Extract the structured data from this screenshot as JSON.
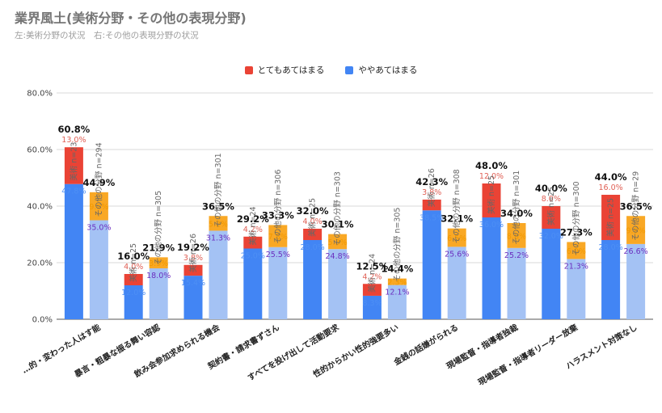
{
  "title": "業界風土(美術分野・その他の表現分野)",
  "subtitle": "左:美術分野の状況　右:その他の表現分野の状況",
  "colors": {
    "very": "#ea4335",
    "some": "#4285f4",
    "other_very": "#f9a825",
    "other_some": "#a4c2f4",
    "sub_very_label": "#e06055",
    "other_very_label": "#f29900",
    "some_label": "#4d8ff5",
    "other_some_label": "#6b2fbf"
  },
  "chart_data": {
    "type": "bar",
    "stacked": true,
    "legend": [
      "とてもあてはまる",
      "ややあてはまる"
    ],
    "legend_position": "top",
    "ylim": [
      0,
      80
    ],
    "yticks": [
      "0.0%",
      "20.0%",
      "40.0%",
      "60.0%",
      "80.0%"
    ],
    "grid": true,
    "categories": [
      "…的・変わった人はす能",
      "暴言・粗暴な振る舞い容認",
      "飲み会参加求められる機会",
      "契約書・請求書ずさん",
      "すべてを投げ出して活動要求",
      "性的からかい性的強要多い",
      "金銭の話嫌がられる",
      "現場監督・指導者独裁",
      "現場監督・指導者リーダー放棄",
      "ハラスメント対策なし"
    ],
    "bars": [
      {
        "category": 0,
        "group": "美術",
        "n_label": "美術 n=23",
        "very": 13.0,
        "some": 47.8,
        "total": "60.8%",
        "very_label": "13.0%",
        "some_label": "47.8%"
      },
      {
        "category": 0,
        "group": "その他の分野",
        "n_label": "その他の分野 n=294",
        "very": 9.9,
        "some": 35.0,
        "total": "44.9%",
        "very_label": "9.9%",
        "some_label": "35.0%"
      },
      {
        "category": 1,
        "group": "美術",
        "n_label": "美術 n=25",
        "very": 4.0,
        "some": 12.0,
        "total": "16.0%",
        "very_label": "4.0%",
        "some_label": "12.0%"
      },
      {
        "category": 1,
        "group": "その他の分野",
        "n_label": "その他の分野 n=305",
        "very": 3.9,
        "some": 18.0,
        "total": "21.9%",
        "very_label": "3.9%",
        "some_label": "18.0%"
      },
      {
        "category": 2,
        "group": "美術",
        "n_label": "美術 n=26",
        "very": 3.8,
        "some": 15.4,
        "total": "19.2%",
        "very_label": "3.8%",
        "some_label": "15.4%"
      },
      {
        "category": 2,
        "group": "その他の分野",
        "n_label": "その他の分野 n=301",
        "very": 5.2,
        "some": 31.3,
        "total": "36.5%",
        "very_label": "5.2%",
        "some_label": "31.3%"
      },
      {
        "category": 3,
        "group": "美術",
        "n_label": "美術 n=24",
        "very": 4.2,
        "some": 25.0,
        "total": "29.2%",
        "very_label": "4.2%",
        "some_label": "25.0%"
      },
      {
        "category": 3,
        "group": "その他の分野",
        "n_label": "その他の分野 n=306",
        "very": 7.8,
        "some": 25.5,
        "total": "33.3%",
        "very_label": "7.8%",
        "some_label": "25.5%"
      },
      {
        "category": 4,
        "group": "美術",
        "n_label": "美術 n=25",
        "very": 4.0,
        "some": 28.0,
        "total": "32.0%",
        "very_label": "4.0%",
        "some_label": "28.0%"
      },
      {
        "category": 4,
        "group": "その他の分野",
        "n_label": "その他の分野 n=303",
        "very": 5.3,
        "some": 24.8,
        "total": "30.1%",
        "very_label": "5.3%",
        "some_label": "24.8%"
      },
      {
        "category": 5,
        "group": "美術",
        "n_label": "美術 n=24",
        "very": 4.2,
        "some": 8.3,
        "total": "12.5%",
        "very_label": "4.2%",
        "some_label": "8.3%"
      },
      {
        "category": 5,
        "group": "その他の分野",
        "n_label": "その他の分野 n=305",
        "very": 2.3,
        "some": 12.1,
        "total": "14.4%",
        "very_label": "2.3%",
        "some_label": "12.1%"
      },
      {
        "category": 6,
        "group": "美術",
        "n_label": "美術 n=26",
        "very": 3.8,
        "some": 38.5,
        "total": "42.3%",
        "very_label": "3.8%",
        "some_label": "38.5%"
      },
      {
        "category": 6,
        "group": "その他の分野",
        "n_label": "その他の分野 n=308",
        "very": 6.5,
        "some": 25.6,
        "total": "32.1%",
        "very_label": "6.5%",
        "some_label": "25.6%"
      },
      {
        "category": 7,
        "group": "美術",
        "n_label": "美術 n=25",
        "very": 12.0,
        "some": 36.0,
        "total": "48.0%",
        "very_label": "12.0%",
        "some_label": "36.0%"
      },
      {
        "category": 7,
        "group": "その他の分野",
        "n_label": "その他の分野 n=301",
        "very": 8.8,
        "some": 25.2,
        "total": "34.0%",
        "very_label": "8.8%",
        "some_label": "25.2%"
      },
      {
        "category": 8,
        "group": "美術",
        "n_label": "美術 n=25",
        "very": 8.0,
        "some": 32.0,
        "total": "40.0%",
        "very_label": "8.0%",
        "some_label": "32.0%"
      },
      {
        "category": 8,
        "group": "その他の分野",
        "n_label": "その他の分野 n=300",
        "very": 6.0,
        "some": 21.3,
        "total": "27.3%",
        "very_label": "6.0%",
        "some_label": "21.3%"
      },
      {
        "category": 9,
        "group": "美術",
        "n_label": "美術 n=25",
        "very": 16.0,
        "some": 28.0,
        "total": "44.0%",
        "very_label": "16.0%",
        "some_label": "28.0%"
      },
      {
        "category": 9,
        "group": "その他の分野",
        "n_label": "その他の分野 n=29",
        "very": 9.9,
        "some": 26.6,
        "total": "36.5%",
        "very_label": "9.9%",
        "some_label": "26.6%"
      }
    ]
  }
}
